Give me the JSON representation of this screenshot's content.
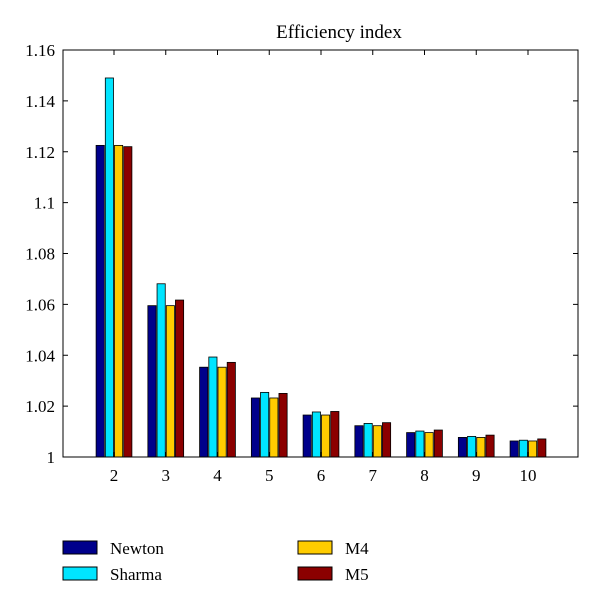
{
  "chart_data": {
    "type": "bar",
    "title": "Efficiency index",
    "xlabel": "",
    "ylabel": "",
    "categories": [
      "2",
      "3",
      "4",
      "5",
      "6",
      "7",
      "8",
      "9",
      "10"
    ],
    "ylim": [
      1,
      1.16
    ],
    "yticks": [
      "1",
      "1.02",
      "1.04",
      "1.06",
      "1.08",
      "1.1",
      "1.12",
      "1.14",
      "1.16"
    ],
    "grid": false,
    "legend_position": "bottom",
    "series": [
      {
        "name": "Newton",
        "color": "#00008b",
        "values": [
          1.1225,
          1.0595,
          1.0353,
          1.0232,
          1.0165,
          1.0123,
          1.0096,
          1.0077,
          1.0063
        ]
      },
      {
        "name": "Sharma",
        "color": "#00e5ff",
        "values": [
          1.149,
          1.0681,
          1.0393,
          1.0254,
          1.0177,
          1.0132,
          1.0102,
          1.0081,
          1.0066
        ]
      },
      {
        "name": "M4",
        "color": "#ffcc00",
        "values": [
          1.1225,
          1.0595,
          1.0353,
          1.0232,
          1.0165,
          1.0123,
          1.0096,
          1.0077,
          1.0063
        ]
      },
      {
        "name": "M5",
        "color": "#8b0000",
        "values": [
          1.122,
          1.0617,
          1.0372,
          1.025,
          1.0179,
          1.0135,
          1.0106,
          1.0086,
          1.0071
        ]
      }
    ]
  }
}
